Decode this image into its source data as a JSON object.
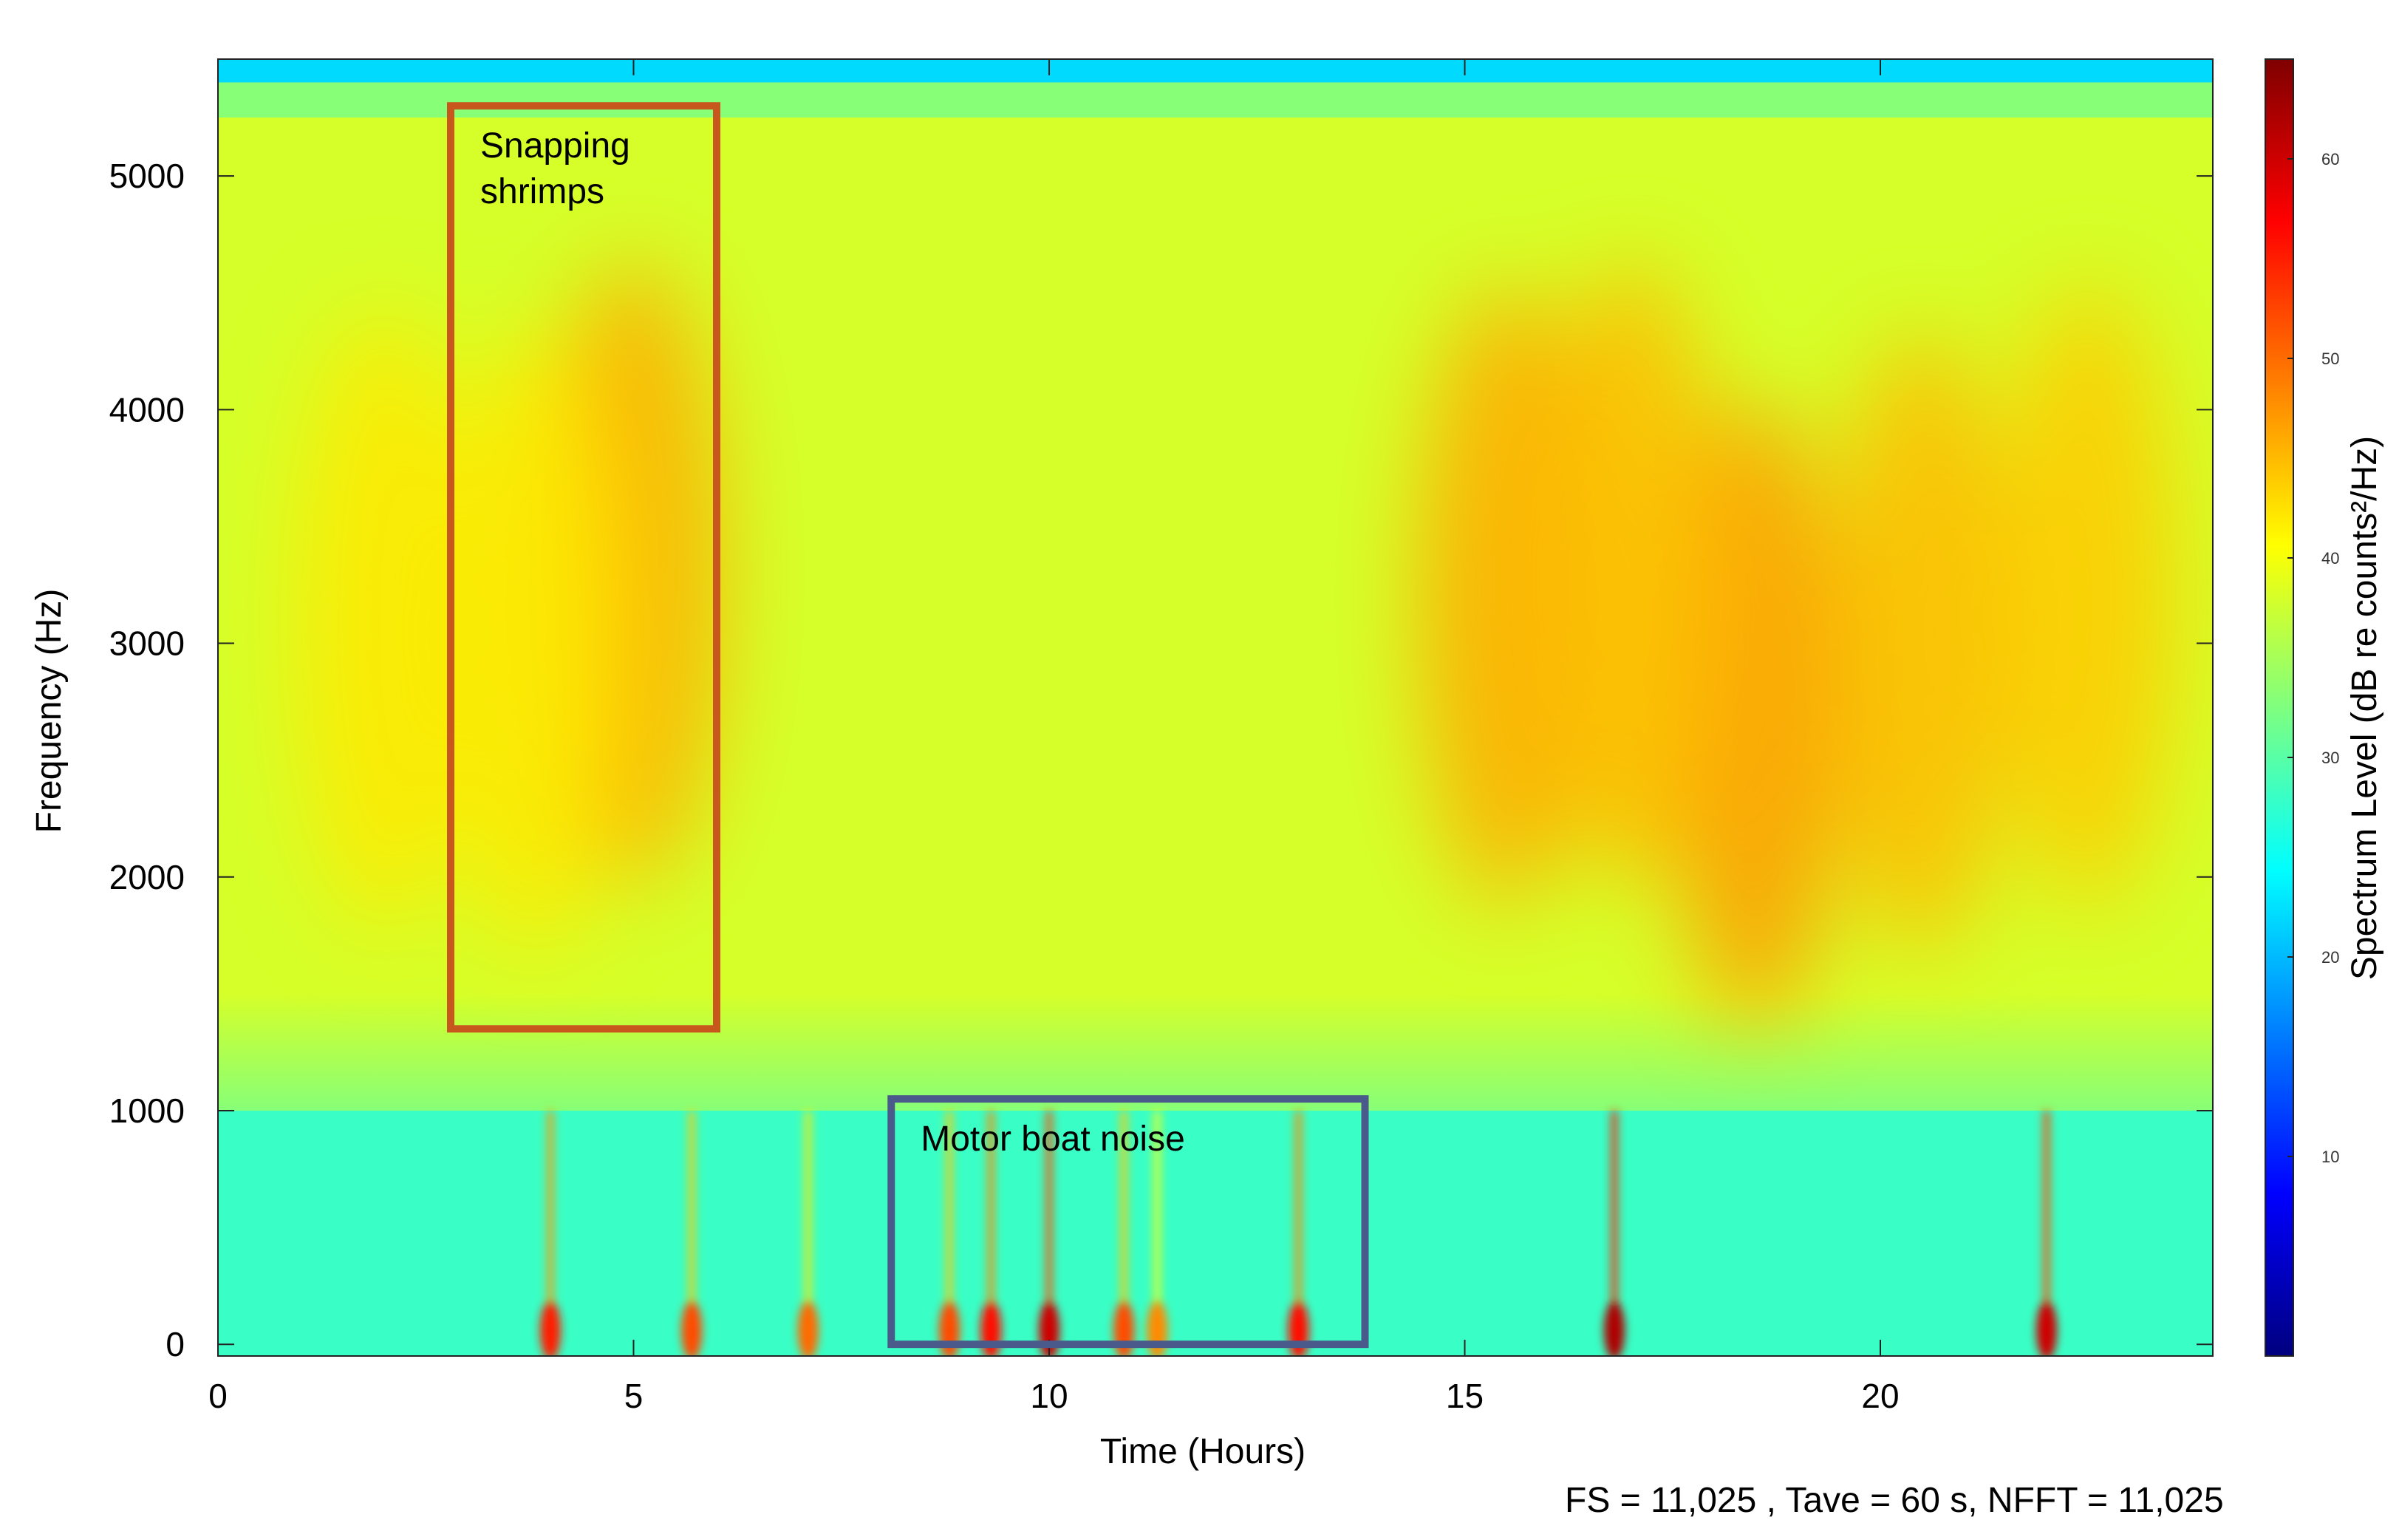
{
  "chart_data": {
    "type": "heatmap",
    "title": "",
    "xlabel": "Time (Hours)",
    "ylabel": "Frequency (Hz)",
    "xlim": [
      0,
      24
    ],
    "ylim": [
      -50,
      5500
    ],
    "xticks": [
      0,
      5,
      10,
      15,
      20
    ],
    "yticks": [
      0,
      1000,
      2000,
      3000,
      4000,
      5000
    ],
    "colorbar": {
      "label": "Spectrum Level (dB re counts²/Hz)",
      "range": [
        0,
        65
      ],
      "ticks": [
        10,
        20,
        30,
        40,
        50,
        60
      ],
      "colormap": "jet",
      "colors": [
        "#00007f",
        "#0000ff",
        "#007fff",
        "#00ffff",
        "#7fff7f",
        "#ffff00",
        "#ff7f00",
        "#ff0000",
        "#7f0000"
      ]
    },
    "background_level": 38,
    "bands": [
      {
        "f_from": 5400,
        "f_to": 5500,
        "level": 22
      },
      {
        "f_from": 5250,
        "f_to": 5400,
        "level": 33
      },
      {
        "f_from": 1500,
        "f_to": 1000,
        "level": 33
      },
      {
        "f_from": 1000,
        "f_to": -50,
        "level": 28
      }
    ],
    "hotspots": [
      {
        "t": 5.0,
        "f": 3300,
        "level": 46
      },
      {
        "t": 3.8,
        "f": 3000,
        "level": 42
      },
      {
        "t": 2.0,
        "f": 3100,
        "level": 42
      },
      {
        "t": 15.5,
        "f": 3200,
        "level": 46
      },
      {
        "t": 18.5,
        "f": 2700,
        "level": 47
      },
      {
        "t": 17.0,
        "f": 3300,
        "level": 45
      },
      {
        "t": 20.5,
        "f": 3000,
        "level": 45
      },
      {
        "t": 22.5,
        "f": 3200,
        "level": 44
      }
    ],
    "boat_events": [
      {
        "t": 4.0,
        "level": 55
      },
      {
        "t": 5.7,
        "level": 52
      },
      {
        "t": 7.1,
        "level": 50
      },
      {
        "t": 8.8,
        "level": 52
      },
      {
        "t": 9.3,
        "level": 56
      },
      {
        "t": 10.0,
        "level": 60
      },
      {
        "t": 10.9,
        "level": 52
      },
      {
        "t": 11.3,
        "level": 48
      },
      {
        "t": 13.0,
        "level": 56
      },
      {
        "t": 16.8,
        "level": 62
      },
      {
        "t": 22.0,
        "level": 60
      }
    ],
    "annotations": [
      {
        "text_lines": [
          "Snapping",
          "shrimps"
        ],
        "box_t": [
          2.8,
          6.0
        ],
        "box_f": [
          1350,
          5300
        ],
        "color": "#c8571e"
      },
      {
        "text_lines": [
          "Motor boat noise"
        ],
        "box_t": [
          8.1,
          13.8
        ],
        "box_f": [
          0,
          1050
        ],
        "color": "#4a5a8a"
      }
    ]
  },
  "footnote": "FS = 11,025 , Tave = 60 s, NFFT = 11,025"
}
